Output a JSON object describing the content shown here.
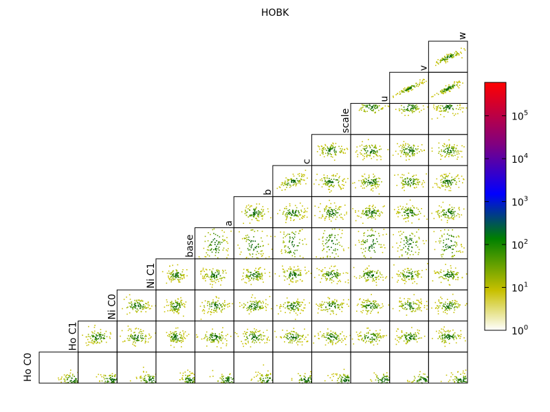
{
  "chart_data": {
    "type": "heatmap",
    "title": "HOBK",
    "variables": [
      "Ho C0",
      "Ho C1",
      "Ni C0",
      "Ni C1",
      "base",
      "a",
      "b",
      "c",
      "scale",
      "u",
      "v",
      "w"
    ],
    "layout": "pairwise 2D histogram matrix (lower-right triangle), diagonal holds variable labels",
    "colorbar": {
      "scale": "log",
      "tick_bases": [
        "10",
        "10",
        "10",
        "10",
        "10",
        "10"
      ],
      "tick_exponents": [
        "0",
        "1",
        "2",
        "3",
        "4",
        "5"
      ],
      "tick_values": [
        1,
        10,
        100,
        1000,
        10000,
        100000
      ],
      "range": [
        1,
        600000
      ],
      "colors": [
        "#ffffff",
        "#c8c000",
        "#008000",
        "#0000ff",
        "#800080",
        "#ff0000"
      ]
    },
    "grid": false
  }
}
